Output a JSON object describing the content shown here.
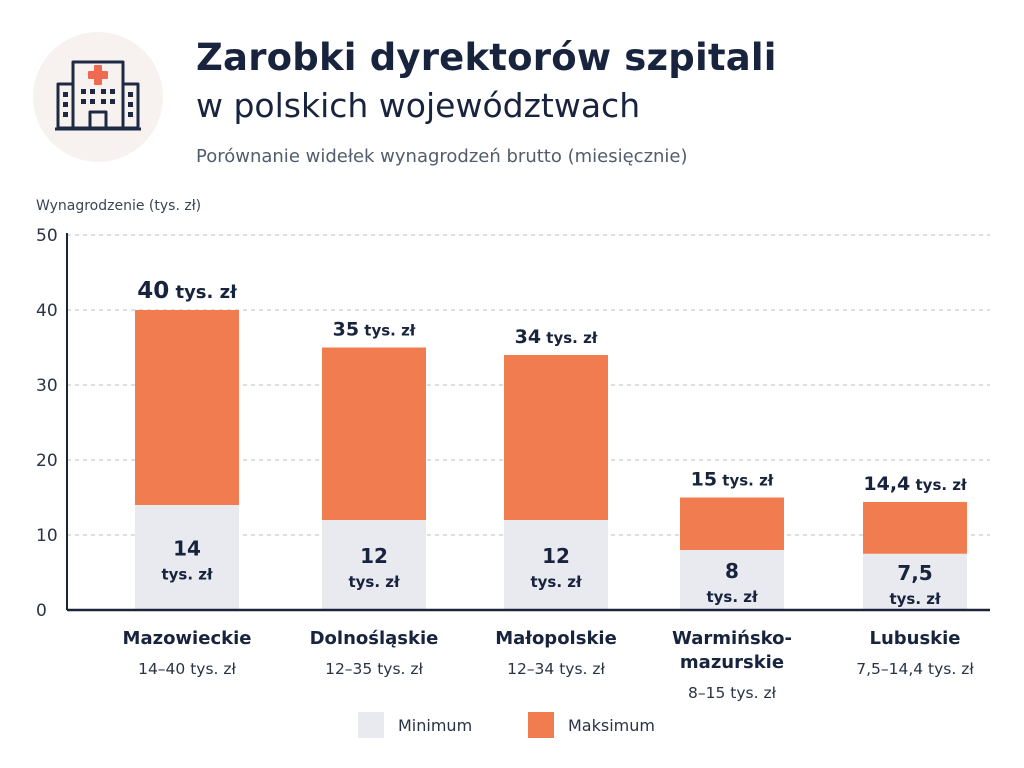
{
  "header": {
    "title_line1": "Zarobki dyrektorów szpitali",
    "title_line2": "w polskich województwach",
    "subtitle": "Porównanie widełek wynagrodzeń brutto (miesięcznie)",
    "icon": "hospital-icon"
  },
  "colors": {
    "minimum": "#e8eaef",
    "maximum": "#f07c4f",
    "text": "#18233d",
    "grid": "#b8bcc4",
    "axis": "#1b2438"
  },
  "legend": {
    "minimum_label": "Minimum",
    "maximum_label": "Maksimum"
  },
  "chart_data": {
    "type": "bar",
    "stacked": true,
    "ylabel": "Wynagrodzenie (tys. zł)",
    "ylim": [
      0,
      50
    ],
    "yticks": [
      "0",
      "10",
      "20",
      "30",
      "40",
      "50"
    ],
    "grid": true,
    "legend_position": "bottom-center",
    "categories": [
      {
        "name_lines": [
          "Mazowieckie"
        ],
        "range_label": "14–40 tys. zł",
        "min": 14,
        "max": 40,
        "min_label": "14",
        "max_label": "40 tys. zł"
      },
      {
        "name_lines": [
          "Dolnośląskie"
        ],
        "range_label": "12–35 tys. zł",
        "min": 12,
        "max": 35,
        "min_label": "12",
        "max_label": "35 tys. zł"
      },
      {
        "name_lines": [
          "Małopolskie"
        ],
        "range_label": "12–34 tys. zł",
        "min": 12,
        "max": 34,
        "min_label": "12",
        "max_label": "34 tys. zł"
      },
      {
        "name_lines": [
          "Warmińsko-",
          "mazurskie"
        ],
        "range_label": "8–15 tys. zł",
        "min": 8,
        "max": 15,
        "min_label": "8",
        "max_label": "15 tys. zł"
      },
      {
        "name_lines": [
          "Lubuskie"
        ],
        "range_label": "7,5–14,4 tys. zł",
        "min": 7.5,
        "max": 14.4,
        "min_label": "7,5",
        "max_label": "14,4 tys. zł"
      }
    ],
    "value_unit_label": "tys. zł",
    "series": [
      {
        "name": "Minimum",
        "values": [
          14,
          12,
          12,
          8,
          7.5
        ]
      },
      {
        "name": "Maksimum",
        "values": [
          40,
          35,
          34,
          15,
          14.4
        ]
      }
    ]
  }
}
